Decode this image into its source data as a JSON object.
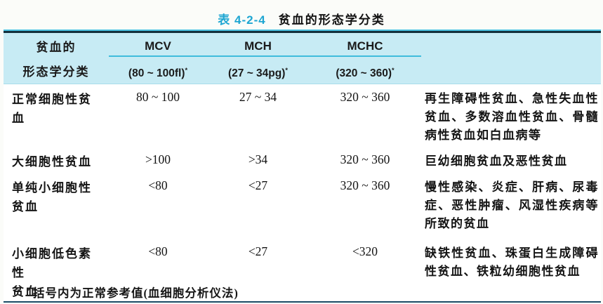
{
  "title": {
    "table_label": "表 4-2-4",
    "table_title": "贫血的形态学分类"
  },
  "colors": {
    "accent_cyan": "#1ea6d2",
    "header_band": "#c7ebf4",
    "header_divider": "#3fbcdc",
    "top_rule_dark": "#13303c",
    "bottom_rule": "#1c4c66"
  },
  "table": {
    "asterisk": "*",
    "row_header": [
      "贫血的",
      "形态学分类"
    ],
    "columns": [
      {
        "name": "MCV",
        "range": "(80 ~ 100fl)"
      },
      {
        "name": "MCH",
        "range": "(27 ~ 34pg)"
      },
      {
        "name": "MCHC",
        "range": "(320 ~ 360)"
      }
    ],
    "rows": [
      {
        "category": [
          "正常细胞性贫血"
        ],
        "mcv": "80 ~ 100",
        "mch": "27 ~ 34",
        "mchc": "320 ~ 360",
        "causes": "再生障碍性贫血、急性失血性贫血、多数溶血性贫血、骨髓病性贫血如白血病等"
      },
      {
        "category": [
          "大细胞性贫血"
        ],
        "mcv": ">100",
        "mch": ">34",
        "mchc": "320 ~ 360",
        "causes": "巨幼细胞贫血及恶性贫血"
      },
      {
        "category": [
          "单纯小细胞性",
          "贫血"
        ],
        "mcv": "<80",
        "mch": "<27",
        "mchc": "320 ~ 360",
        "causes": "慢性感染、炎症、肝病、尿毒症、恶性肿瘤、风湿性疾病等所致的贫血"
      },
      {
        "category": [
          "小细胞低色素性",
          "贫血"
        ],
        "mcv": "<80",
        "mch": "<27",
        "mchc": "<320",
        "causes": "缺铁性贫血、珠蛋白生成障碍性贫血、铁粒幼细胞性贫血"
      }
    ]
  },
  "footnote": {
    "marker": "*",
    "text": "括号内为正常参考值(血细胞分析仪法)"
  }
}
